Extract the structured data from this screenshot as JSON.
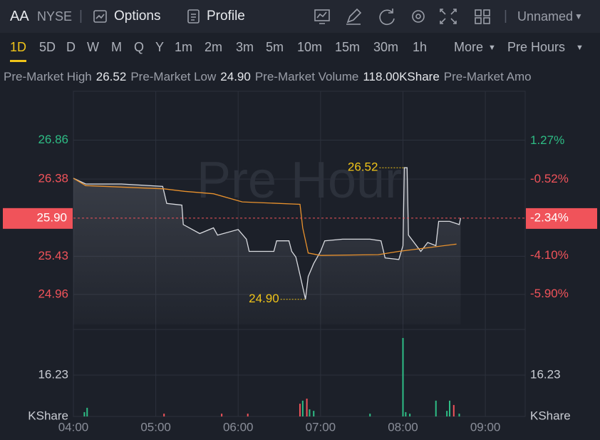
{
  "header": {
    "symbol": "AA",
    "exchange": "NYSE",
    "options": "Options",
    "profile": "Profile",
    "layout": "Unnamed"
  },
  "periods": {
    "items": [
      "1D",
      "5D",
      "D",
      "W",
      "M",
      "Q",
      "Y",
      "1m",
      "2m",
      "3m",
      "5m",
      "10m",
      "15m",
      "30m",
      "1h"
    ],
    "more": "More",
    "session": "Pre Hours"
  },
  "stats": [
    {
      "label": "Pre-Market High",
      "value": "26.52"
    },
    {
      "label": "Pre-Market Low",
      "value": "24.90"
    },
    {
      "label": "Pre-Market Volume",
      "value": "118.00KShare"
    },
    {
      "label": "Pre-Market Amo"
    }
  ],
  "chart_data": {
    "type": "line",
    "watermark": "Pre Hour",
    "xlim": [
      240,
      569
    ],
    "xticks": [
      {
        "value": 240,
        "label": "04:00"
      },
      {
        "value": 300,
        "label": "05:00"
      },
      {
        "value": 360,
        "label": "06:00"
      },
      {
        "value": 420,
        "label": "07:00"
      },
      {
        "value": 480,
        "label": "08:00"
      },
      {
        "value": 540,
        "label": "09:00"
      }
    ],
    "ylim": [
      24.59,
      27.33
    ],
    "yticks": [
      24.96,
      25.43,
      26.38,
      26.86
    ],
    "ytick_colors": [
      "#f0535a",
      "#f0535a",
      "#f0535a",
      "#2ebd85"
    ],
    "y2lim": [
      -7.31,
      3.09
    ],
    "y2ticks": [
      {
        "value": -5.9,
        "label": "-5.90%"
      },
      {
        "value": -4.1,
        "label": "-4.10%"
      },
      {
        "value": -0.52,
        "label": "-0.52%"
      },
      {
        "value": 1.27,
        "label": "1.27%"
      }
    ],
    "grid": true,
    "series": [
      {
        "color": "#d9dbe0",
        "x": [
          240,
          249,
          275,
          305,
          308,
          319,
          320,
          332,
          342,
          345,
          360,
          366,
          368,
          386,
          388,
          397,
          399,
          402,
          405,
          409,
          411,
          415,
          420,
          423,
          436,
          456,
          464,
          467,
          477,
          480,
          481,
          483,
          484,
          493,
          498,
          504,
          506,
          514,
          521,
          522
        ],
        "values": [
          26.39,
          26.32,
          26.32,
          26.29,
          26.08,
          26.06,
          25.82,
          25.71,
          25.78,
          25.69,
          25.76,
          25.64,
          25.49,
          25.49,
          25.62,
          25.62,
          25.49,
          25.42,
          25.2,
          24.9,
          25.18,
          25.34,
          25.49,
          25.62,
          25.64,
          25.64,
          25.62,
          25.41,
          25.39,
          25.56,
          26.52,
          26.52,
          25.69,
          25.49,
          25.6,
          25.56,
          25.86,
          25.86,
          25.82,
          25.9
        ]
      },
      {
        "color": "#e8912d",
        "x": [
          240,
          249,
          306,
          321,
          342,
          363,
          405,
          407,
          411,
          420,
          462,
          477,
          519
        ],
        "values": [
          26.39,
          26.3,
          26.26,
          26.23,
          26.2,
          26.1,
          26.07,
          25.78,
          25.47,
          25.44,
          25.45,
          25.49,
          25.58
        ]
      }
    ],
    "annotations": [
      {
        "value": 26.52,
        "label": "26.52",
        "x": 481
      },
      {
        "value": 24.9,
        "label": "24.90",
        "x": 409
      }
    ],
    "last": {
      "value": 25.9,
      "label": "25.90",
      "pct": {
        "value": -2.34,
        "label": "-2.34%"
      },
      "color": "#f0535a"
    },
    "volume": {
      "unit": "KShare",
      "ylim": [
        0,
        32.46
      ],
      "yticks": [
        16.23
      ],
      "x": [
        248,
        250,
        306,
        348,
        367,
        405,
        407,
        410,
        412,
        415,
        456,
        480,
        482,
        485,
        504,
        512,
        514,
        517,
        521
      ],
      "values": [
        1.7,
        3.4,
        1.1,
        1.1,
        1.1,
        5,
        6.2,
        7,
        2.8,
        2.2,
        1.1,
        30.8,
        1.7,
        1.1,
        6.2,
        2.2,
        6.2,
        4.5,
        1.1
      ],
      "colors": [
        "#2ebd85",
        "#2ebd85",
        "#f0535a",
        "#f0535a",
        "#f0535a",
        "#f0535a",
        "#2ebd85",
        "#f0535a",
        "#2ebd85",
        "#2ebd85",
        "#2ebd85",
        "#2ebd85",
        "#2ebd85",
        "#2ebd85",
        "#2ebd85",
        "#2ebd85",
        "#2ebd85",
        "#f0535a",
        "#2ebd85"
      ]
    }
  }
}
